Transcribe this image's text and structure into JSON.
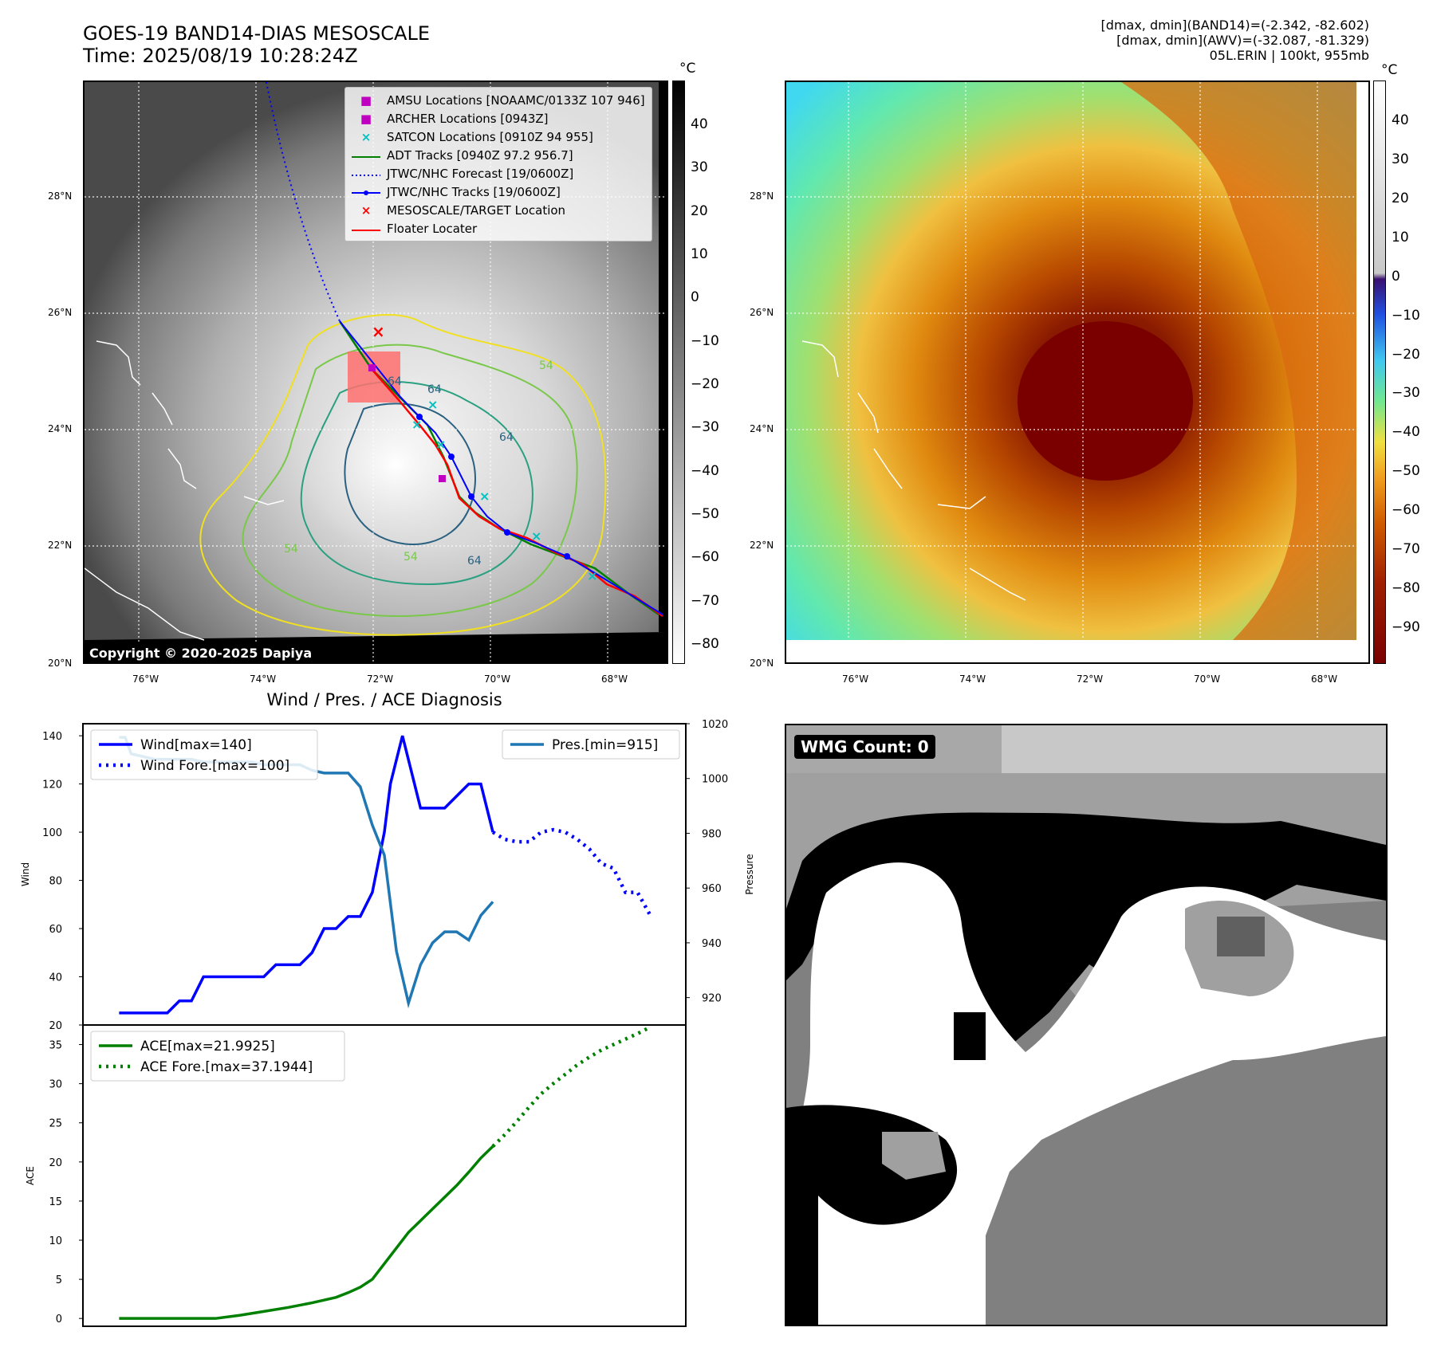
{
  "header": {
    "title_line1": "GOES-19 BAND14-DIAS MESOSCALE",
    "title_line2": "Time: 2025/08/19 10:28:24Z",
    "info_line1": "[dmax, dmin](BAND14)=(-2.342, -82.602)",
    "info_line2": "[dmax, dmin](AWV)=(-32.087, -81.329)",
    "info_line3": "05L.ERIN | 100kt, 955mb"
  },
  "map": {
    "lat_labels": [
      "28°N",
      "26°N",
      "24°N",
      "22°N",
      "20°N"
    ],
    "lon_labels": [
      "76°W",
      "74°W",
      "72°W",
      "70°W",
      "68°W"
    ],
    "copyright": "Copyright © 2020-2025 Dapiya",
    "contour_labels": [
      "64",
      "54",
      "64",
      "54",
      "54",
      "64",
      "64"
    ],
    "legend": [
      {
        "label": "AMSU Locations [NOAAMC/0133Z 107 946]",
        "symbol": "■",
        "color": "#c000c0"
      },
      {
        "label": "ARCHER Locations [0943Z]",
        "symbol": "■",
        "color": "#c000c0"
      },
      {
        "label": "SATCON Locations [0910Z 94 955]",
        "symbol": "×",
        "color": "#00c0c0"
      },
      {
        "label": "ADT Tracks [0940Z 97.2 956.7]",
        "symbol": "line",
        "color": "#008000"
      },
      {
        "label": "JTWC/NHC Forecast [19/0600Z]",
        "symbol": "dotted",
        "color": "#0000ff"
      },
      {
        "label": "JTWC/NHC Tracks [19/0600Z]",
        "symbol": "dotline",
        "color": "#0000ff"
      },
      {
        "label": "MESOSCALE/TARGET Location",
        "symbol": "×",
        "color": "#ff0000"
      },
      {
        "label": "Floater Locater",
        "symbol": "line",
        "color": "#ff0000"
      }
    ]
  },
  "colorbar_left": {
    "unit": "°C",
    "ticks": [
      "40",
      "30",
      "20",
      "10",
      "0",
      "−10",
      "−20",
      "−30",
      "−40",
      "−50",
      "−60",
      "−70",
      "−80"
    ]
  },
  "colorbar_right": {
    "unit": "°C",
    "ticks": [
      "40",
      "30",
      "20",
      "10",
      "0",
      "−10",
      "−20",
      "−30",
      "−40",
      "−50",
      "−60",
      "−70",
      "−80",
      "−90"
    ]
  },
  "wmg": {
    "label": "WMG Count: 0"
  },
  "chart_data": [
    {
      "type": "line",
      "title": "Wind / Pres. / ACE Diagnosis",
      "ylabel": "Wind",
      "ylabel_right": "Pressure",
      "ylim": [
        20,
        145
      ],
      "ylim_right": [
        910,
        1020
      ],
      "yticks": [
        20,
        40,
        60,
        80,
        100,
        120,
        140
      ],
      "yticks_right": [
        920,
        940,
        960,
        980,
        1000,
        1020
      ],
      "series": [
        {
          "name": "Wind[max=140]",
          "color": "#0000ff",
          "style": "solid",
          "x": [
            0,
            1,
            2,
            3,
            4,
            5,
            6,
            7,
            8,
            9,
            10,
            11,
            12,
            13,
            14,
            15,
            16,
            17,
            18,
            19,
            20,
            21,
            22,
            22.5,
            23,
            23.5,
            24,
            25,
            26,
            27,
            28,
            29,
            30,
            31
          ],
          "values": [
            25,
            25,
            25,
            25,
            25,
            30,
            30,
            40,
            40,
            40,
            40,
            40,
            40,
            45,
            45,
            45,
            50,
            60,
            60,
            65,
            65,
            75,
            100,
            120,
            130,
            140,
            130,
            110,
            110,
            110,
            115,
            120,
            120,
            100
          ]
        },
        {
          "name": "Wind Fore.[max=100]",
          "color": "#0000ff",
          "style": "dotted",
          "x": [
            31,
            32,
            33,
            34,
            35,
            36,
            37,
            38,
            39,
            40,
            41,
            42,
            43,
            44
          ],
          "values": [
            100,
            97,
            96,
            96,
            100,
            101,
            100,
            97,
            93,
            87,
            85,
            75,
            75,
            66
          ]
        },
        {
          "name": "Pres.[min=915]",
          "color": "#1f77b4",
          "style": "solid",
          "axis": "right",
          "x": [
            0,
            0.5,
            1,
            2,
            3,
            4,
            5,
            6,
            7,
            8,
            9,
            10,
            11,
            12,
            13,
            14,
            15,
            16,
            17,
            18,
            19,
            20,
            20.5,
            21,
            22,
            23,
            24,
            25,
            26,
            27,
            28,
            29,
            30,
            31
          ],
          "values": [
            1015,
            1015,
            1009,
            1008,
            1007,
            1007,
            1007,
            1007,
            1006,
            1006,
            1006,
            1006,
            1006,
            1005,
            1005,
            1005,
            1005,
            1003,
            1002,
            1002,
            1002,
            997,
            990,
            983,
            972,
            937,
            918,
            932,
            940,
            944,
            944,
            941,
            950,
            955
          ]
        }
      ]
    },
    {
      "type": "line",
      "ylabel": "ACE",
      "ylim": [
        -1,
        37.5
      ],
      "yticks": [
        0,
        5,
        10,
        15,
        20,
        25,
        30,
        35
      ],
      "series": [
        {
          "name": "ACE[max=21.9925]",
          "color": "#008000",
          "style": "solid",
          "x": [
            0,
            2,
            4,
            6,
            8,
            10,
            12,
            14,
            16,
            18,
            19,
            20,
            21,
            22,
            23,
            24,
            25,
            26,
            27,
            28,
            29,
            30,
            31
          ],
          "values": [
            0,
            0,
            0,
            0,
            0,
            0.4,
            0.9,
            1.4,
            2.0,
            2.7,
            3.3,
            4.0,
            5.0,
            7.0,
            9.0,
            11.0,
            12.5,
            14.0,
            15.5,
            17.0,
            18.7,
            20.5,
            21.9925
          ]
        },
        {
          "name": "ACE Fore.[max=37.1944]",
          "color": "#008000",
          "style": "dotted",
          "x": [
            31,
            32,
            33,
            34,
            35,
            36,
            37,
            38,
            39,
            40,
            41,
            42,
            43,
            44
          ],
          "values": [
            21.9925,
            23.5,
            25.2,
            27.0,
            28.7,
            30.0,
            31.2,
            32.4,
            33.4,
            34.3,
            35.0,
            35.7,
            36.4,
            37.1944
          ]
        }
      ]
    }
  ]
}
